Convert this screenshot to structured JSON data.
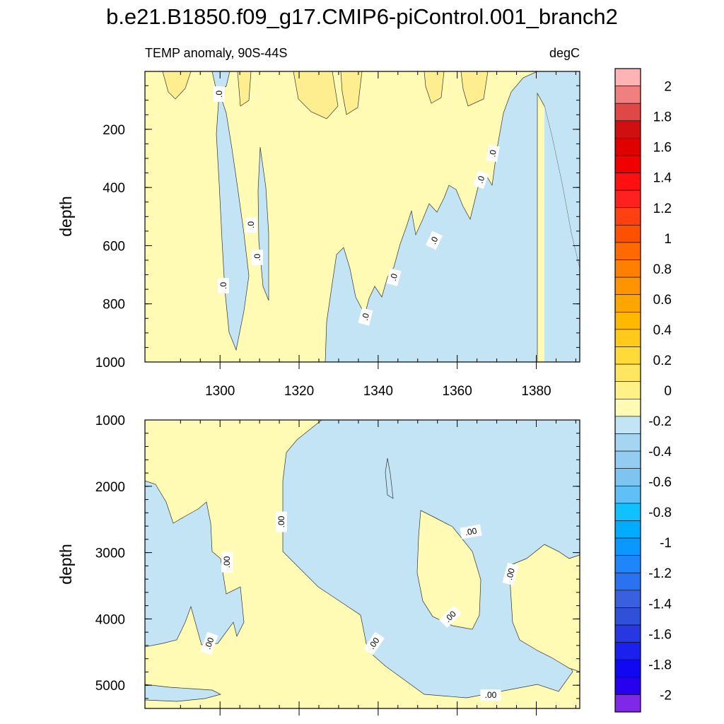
{
  "title": "b.e21.B1850.f09_g17.CMIP6-piControl.001_branch2",
  "colors": {
    "positive_fill": "#FFFBB5",
    "negative_fill": "#C2E4F5",
    "contour_line": "#333333"
  },
  "chart_data": [
    {
      "type": "heatmap",
      "panel": "upper",
      "subtitle_left": "TEMP anomaly, 90S-44S",
      "subtitle_right": "degC",
      "ylabel": "depth",
      "y_reversed": true,
      "xlim": [
        1281,
        1391
      ],
      "ylim": [
        1,
        1000
      ],
      "x_ticks": [
        "1300",
        "1320",
        "1340",
        "1360",
        "1380"
      ],
      "y_ticks": [
        "200",
        "400",
        "600",
        "800",
        "1000"
      ],
      "contour_labels": [
        ".0",
        ".0",
        ".0",
        ".0",
        ".0",
        ".0",
        ".0",
        ".0",
        ".0"
      ]
    },
    {
      "type": "heatmap",
      "panel": "lower",
      "ylabel": "depth",
      "y_reversed": true,
      "xlim": [
        1281,
        1391
      ],
      "ylim": [
        1000,
        5350
      ],
      "y_ticks": [
        "1000",
        "2000",
        "3000",
        "4000",
        "5000"
      ],
      "contour_labels": [
        ".00",
        ".00",
        ".00",
        ".00",
        ".00",
        ".00",
        ".00",
        ".00"
      ]
    }
  ],
  "colorbar": {
    "colors": [
      "#FFB4B4",
      "#F08080",
      "#E04848",
      "#D01010",
      "#E00000",
      "#F00000",
      "#FF1010",
      "#FF2020",
      "#FF4010",
      "#FF5000",
      "#FF6A00",
      "#FF8000",
      "#FF9300",
      "#FFA500",
      "#FFB800",
      "#FFCA18",
      "#FFDA38",
      "#FFE660",
      "#FFF088",
      "#FFFBB5",
      "#C2E4F5",
      "#A5D5F0",
      "#93CCF0",
      "#7DC4F0",
      "#60C0F5",
      "#10C0FF",
      "#00ACFF",
      "#0A98FF",
      "#1E86FA",
      "#2A72F0",
      "#3A60E0",
      "#3050D8",
      "#2838E0",
      "#1C20EC",
      "#1008F0",
      "#2800F0",
      "#8028E8"
    ],
    "labels": [
      "2",
      "1.8",
      "1.6",
      "1.4",
      "1.2",
      "1",
      "0.8",
      "0.6",
      "0.4",
      "0.2",
      "0",
      "-0.2",
      "-0.4",
      "-0.6",
      "-0.8",
      "-1",
      "-1.2",
      "-1.4",
      "-1.6",
      "-1.8",
      "-2"
    ]
  }
}
